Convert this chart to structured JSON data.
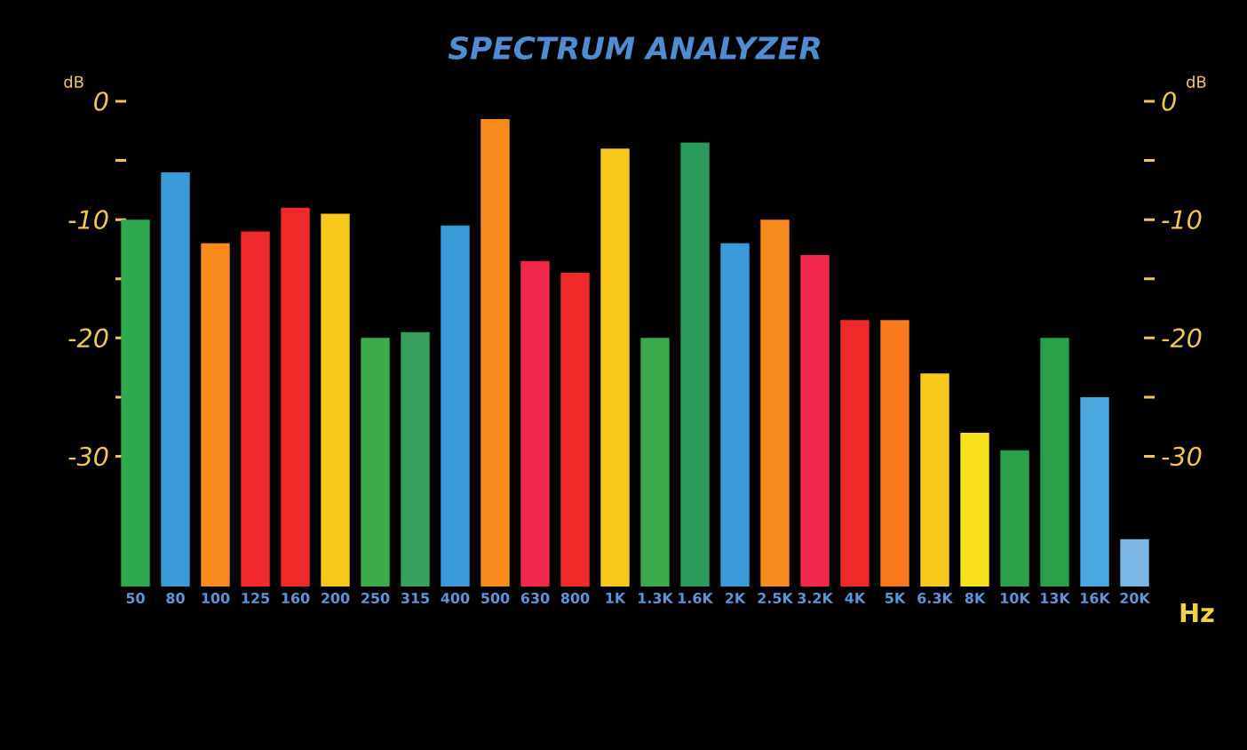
{
  "chart_data": {
    "type": "bar",
    "title": "SPECTRUM ANALYZER",
    "xlabel": "Hz",
    "ylabel": "dB",
    "y2label": "dB",
    "categories": [
      "50",
      "80",
      "100",
      "125",
      "160",
      "200",
      "250",
      "315",
      "400",
      "500",
      "630",
      "800",
      "1K",
      "1.3K",
      "1.6K",
      "2K",
      "2.5K",
      "3.2K",
      "4K",
      "5K",
      "6.3K",
      "8K",
      "10K",
      "13K",
      "16K",
      "20K"
    ],
    "values": [
      31,
      35,
      29,
      30,
      32,
      31.5,
      21,
      21.5,
      30.5,
      39.5,
      27.5,
      26.5,
      37,
      21,
      37.5,
      29,
      31,
      28,
      22.5,
      22.5,
      18,
      13,
      11.5,
      21,
      16,
      4
    ],
    "base": [
      -41,
      -41,
      -41,
      -41,
      -41,
      -41,
      -41,
      -41,
      -41,
      -41,
      -41,
      -41,
      -41,
      -41,
      -41,
      -41,
      -41,
      -41,
      -41,
      -41,
      -41,
      -41,
      -41,
      -41,
      -41,
      -41
    ],
    "colors": [
      "#2eaa4e",
      "#3a9ad8",
      "#f98a1c",
      "#f02a2a",
      "#f02a2a",
      "#f8c81a",
      "#3aaa4a",
      "#3aa060",
      "#3a9ad8",
      "#f98a1c",
      "#f0284a",
      "#f02a2a",
      "#f8c81a",
      "#3aaa4a",
      "#2a9a5a",
      "#3a9ad8",
      "#f98a1c",
      "#f0284a",
      "#f02a2a",
      "#f97a1c",
      "#f8c81a",
      "#f8e01a",
      "#2aa04a",
      "#2aa04a",
      "#4aa8e0",
      "#7ab8e8"
    ],
    "ylim": [
      -41,
      0
    ],
    "yticks": [
      0,
      {
        "value": -5,
        "label": null
      },
      -10,
      {
        "value": -15,
        "label": null
      },
      -20,
      {
        "value": -25,
        "label": null
      },
      -30
    ],
    "y2lim": [
      -41,
      0
    ],
    "y2ticks": [
      0,
      {
        "value": -5,
        "label": null
      },
      -10,
      {
        "value": -15,
        "label": null
      },
      -20,
      {
        "value": -25,
        "label": null
      },
      -30
    ],
    "grid": false
  }
}
